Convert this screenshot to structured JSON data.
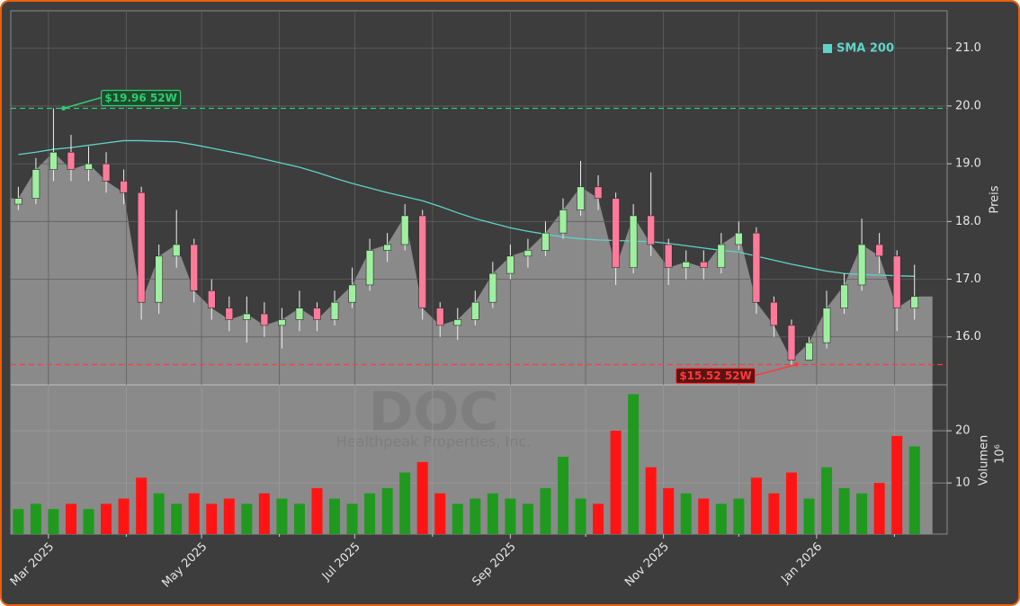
{
  "chart_data": {
    "type": "candlestick",
    "dates": [
      "2025-02-17",
      "2025-02-24",
      "2025-03-03",
      "2025-03-10",
      "2025-03-17",
      "2025-03-24",
      "2025-03-31",
      "2025-04-07",
      "2025-04-14",
      "2025-04-21",
      "2025-04-28",
      "2025-05-05",
      "2025-05-12",
      "2025-05-19",
      "2025-05-26",
      "2025-06-02",
      "2025-06-09",
      "2025-06-16",
      "2025-06-23",
      "2025-06-30",
      "2025-07-07",
      "2025-07-14",
      "2025-07-21",
      "2025-07-28",
      "2025-08-04",
      "2025-08-11",
      "2025-08-18",
      "2025-08-25",
      "2025-09-01",
      "2025-09-08",
      "2025-09-15",
      "2025-09-22",
      "2025-09-29",
      "2025-10-06",
      "2025-10-13",
      "2025-10-20",
      "2025-10-27",
      "2025-11-03",
      "2025-11-10",
      "2025-11-17",
      "2025-11-24",
      "2025-12-01",
      "2025-12-08",
      "2025-12-15",
      "2025-12-22",
      "2025-12-29",
      "2026-01-05",
      "2026-01-12",
      "2026-01-19",
      "2026-01-26",
      "2026-02-02",
      "2026-02-09"
    ],
    "open": [
      18.3,
      18.4,
      18.9,
      19.2,
      18.9,
      19.0,
      18.7,
      18.5,
      16.6,
      17.4,
      17.6,
      16.8,
      16.5,
      16.3,
      16.4,
      16.2,
      16.3,
      16.5,
      16.3,
      16.6,
      16.9,
      17.5,
      17.6,
      18.1,
      16.5,
      16.2,
      16.3,
      16.6,
      17.1,
      17.4,
      17.5,
      17.8,
      18.2,
      18.6,
      18.4,
      17.2,
      18.1,
      17.6,
      17.2,
      17.3,
      17.2,
      17.6,
      17.8,
      16.6,
      16.2,
      15.6,
      15.9,
      16.5,
      16.9,
      17.6,
      17.4,
      16.5
    ],
    "high": [
      18.6,
      19.1,
      19.96,
      19.5,
      19.3,
      19.2,
      18.9,
      18.6,
      17.6,
      18.2,
      17.7,
      17.0,
      16.7,
      16.7,
      16.6,
      16.5,
      16.8,
      16.6,
      16.8,
      17.2,
      17.7,
      17.8,
      18.3,
      18.2,
      16.6,
      16.5,
      16.8,
      17.3,
      17.6,
      17.7,
      18.0,
      18.4,
      19.05,
      18.8,
      18.5,
      18.3,
      18.85,
      17.7,
      17.5,
      17.5,
      17.8,
      18.0,
      17.9,
      16.7,
      16.3,
      16.0,
      16.8,
      17.1,
      18.05,
      17.8,
      17.5,
      17.25
    ],
    "low": [
      18.2,
      18.3,
      18.7,
      18.7,
      18.7,
      18.5,
      18.3,
      16.3,
      16.4,
      17.2,
      16.6,
      16.3,
      16.1,
      15.9,
      16.0,
      15.8,
      16.1,
      16.1,
      16.2,
      16.5,
      16.8,
      17.3,
      17.5,
      16.3,
      16.0,
      15.95,
      16.2,
      16.5,
      17.0,
      17.2,
      17.4,
      17.7,
      18.1,
      18.2,
      16.9,
      17.1,
      17.4,
      16.9,
      17.0,
      17.0,
      17.1,
      17.5,
      16.4,
      16.0,
      15.52,
      15.6,
      15.8,
      16.4,
      16.8,
      17.1,
      16.1,
      16.3
    ],
    "close": [
      18.4,
      18.9,
      19.2,
      18.9,
      19.0,
      18.7,
      18.5,
      16.6,
      17.4,
      17.6,
      16.8,
      16.5,
      16.3,
      16.4,
      16.2,
      16.3,
      16.5,
      16.3,
      16.6,
      16.9,
      17.5,
      17.6,
      18.1,
      16.5,
      16.2,
      16.3,
      16.6,
      17.1,
      17.4,
      17.5,
      17.8,
      18.2,
      18.6,
      18.4,
      17.2,
      18.1,
      17.6,
      17.2,
      17.3,
      17.2,
      17.6,
      17.8,
      16.6,
      16.2,
      15.6,
      15.9,
      16.5,
      16.9,
      17.6,
      17.4,
      16.5,
      16.7
    ],
    "volume": [
      5,
      6,
      5,
      6,
      5,
      6,
      7,
      11,
      8,
      6,
      8,
      6,
      7,
      6,
      8,
      7,
      6,
      9,
      7,
      6,
      8,
      9,
      12,
      14,
      8,
      6,
      7,
      8,
      7,
      6,
      9,
      15,
      7,
      6,
      20,
      27,
      13,
      9,
      8,
      7,
      6,
      7,
      11,
      8,
      12,
      7,
      13,
      9,
      8,
      10,
      19,
      17
    ],
    "sma": {
      "name": "SMA 200",
      "color": "#5fd3c8",
      "values": [
        19.16,
        19.2,
        19.25,
        19.28,
        19.32,
        19.36,
        19.4,
        19.4,
        19.39,
        19.38,
        19.33,
        19.27,
        19.21,
        19.15,
        19.08,
        19.01,
        18.94,
        18.85,
        18.75,
        18.66,
        18.58,
        18.5,
        18.43,
        18.36,
        18.26,
        18.15,
        18.05,
        17.97,
        17.89,
        17.83,
        17.78,
        17.73,
        17.7,
        17.68,
        17.67,
        17.66,
        17.65,
        17.62,
        17.58,
        17.54,
        17.5,
        17.47,
        17.4,
        17.33,
        17.26,
        17.2,
        17.14,
        17.1,
        17.08,
        17.07,
        17.06,
        17.05
      ]
    },
    "candle_colors": {
      "up": "#9ef0a0",
      "down": "#ff7a9a"
    },
    "volume_colors": {
      "up": "#1f9a1f",
      "down": "#ff1414"
    },
    "area_color": "#8a8a8a",
    "xlim": [
      "2025-02-14",
      "2026-02-22"
    ],
    "xticks": [
      {
        "value": "2025-03-01",
        "label": "Mar 2025"
      },
      {
        "value": "2025-05-01",
        "label": "May 2025"
      },
      {
        "value": "2025-07-01",
        "label": "Jul 2025"
      },
      {
        "value": "2025-09-01",
        "label": "Sep 2025"
      },
      {
        "value": "2025-11-01",
        "label": "Nov 2025"
      },
      {
        "value": "2026-01-01",
        "label": "Jan 2026"
      }
    ],
    "xticks_minor": [
      "2025-04-01",
      "2025-06-01",
      "2025-08-01",
      "2025-10-01",
      "2025-12-01",
      "2026-02-01"
    ],
    "ylim": [
      15.17,
      21.65
    ],
    "yticks": [
      {
        "value": 16,
        "label": "16.0"
      },
      {
        "value": 17,
        "label": "17.0"
      },
      {
        "value": 18,
        "label": "18.0"
      },
      {
        "value": 19,
        "label": "19.0"
      },
      {
        "value": 20,
        "label": "20.0"
      },
      {
        "value": 21,
        "label": "21.0"
      }
    ],
    "y_label": "Preis",
    "y2lim": [
      0.2,
      28.8
    ],
    "y2ticks": [
      10,
      20
    ],
    "y2_label": "Volumen",
    "y2_unit": "10⁶",
    "grid": true,
    "legend": "upper right",
    "annotations": [
      {
        "text": "$19.96 52W",
        "value": 19.96,
        "date": "2025-03-07",
        "color": "#2ecc71"
      },
      {
        "text": "$15.52 52W",
        "value": 15.52,
        "date": "2025-12-24",
        "color": "#ff3b3b"
      }
    ],
    "watermark": {
      "symbol": "DOC",
      "company": "Healthpeak Properties, Inc."
    }
  }
}
